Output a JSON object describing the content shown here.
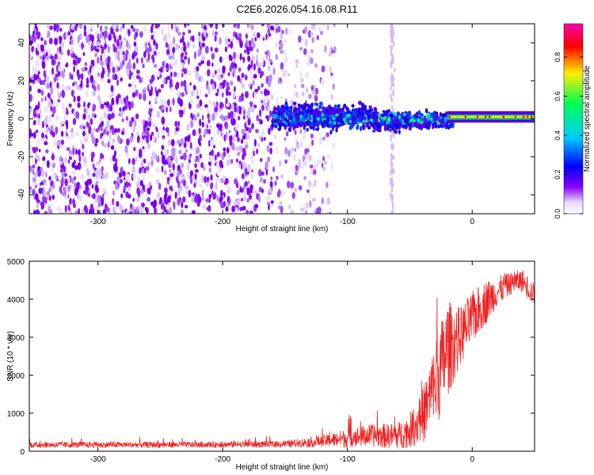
{
  "title": "C2E6.2026.054.16.08.R11",
  "colors": {
    "frame": "#000000",
    "snr_line": "#ee2222",
    "background": "#ffffff"
  },
  "chart_data": [
    {
      "type": "heatmap",
      "name": "spectrogram",
      "xlabel": "Height of straight line (km)",
      "ylabel": "Frequency (Hz)",
      "xlim": [
        -355,
        50
      ],
      "ylim": [
        -50,
        50
      ],
      "xticks": [
        -300,
        -200,
        -100,
        0
      ],
      "yticks": [
        -40,
        -20,
        0,
        20,
        40
      ],
      "description_regions": [
        {
          "x_range": [
            -355,
            -160
          ],
          "pattern": "broadband noise, purple speckle across all frequencies"
        },
        {
          "x_range": [
            -160,
            -20
          ],
          "pattern": "signal band near 0 Hz, width ~ +/-8 Hz, blue/green"
        },
        {
          "x_range": [
            -20,
            50
          ],
          "pattern": "narrow carrier at ~1 Hz, green/yellow/red"
        }
      ],
      "colorbar": {
        "label": "Normalized spectral amplitude",
        "ticks": [
          0.0,
          0.2,
          0.4,
          0.6,
          0.8
        ],
        "range": [
          0,
          0.97
        ],
        "colors": [
          "#ffffff",
          "#8800ff",
          "#0000ff",
          "#00ccff",
          "#00ff66",
          "#ffee00",
          "#ff0000",
          "#ff00aa"
        ]
      }
    },
    {
      "type": "line",
      "name": "snr",
      "xlabel": "Height of straight line (km)",
      "ylabel": "SNR (10 * v/v)",
      "xlim": [
        -355,
        50
      ],
      "ylim": [
        0,
        5000
      ],
      "xticks": [
        -300,
        -200,
        -100,
        0
      ],
      "yticks": [
        0,
        1000,
        2000,
        3000,
        4000,
        5000
      ],
      "series": [
        {
          "name": "SNR",
          "x": [
            -355,
            -300,
            -250,
            -200,
            -150,
            -120,
            -100,
            -80,
            -60,
            -50,
            -40,
            -30,
            -20,
            -10,
            0,
            10,
            20,
            30,
            40,
            50
          ],
          "y_mean": [
            170,
            170,
            170,
            175,
            190,
            260,
            350,
            420,
            400,
            550,
            900,
            1700,
            2700,
            3000,
            3500,
            3900,
            4200,
            4400,
            4500,
            4100
          ],
          "y_spread": [
            80,
            80,
            80,
            80,
            90,
            150,
            250,
            300,
            350,
            450,
            700,
            1200,
            1300,
            800,
            700,
            600,
            400,
            300,
            300,
            300
          ]
        }
      ]
    }
  ]
}
